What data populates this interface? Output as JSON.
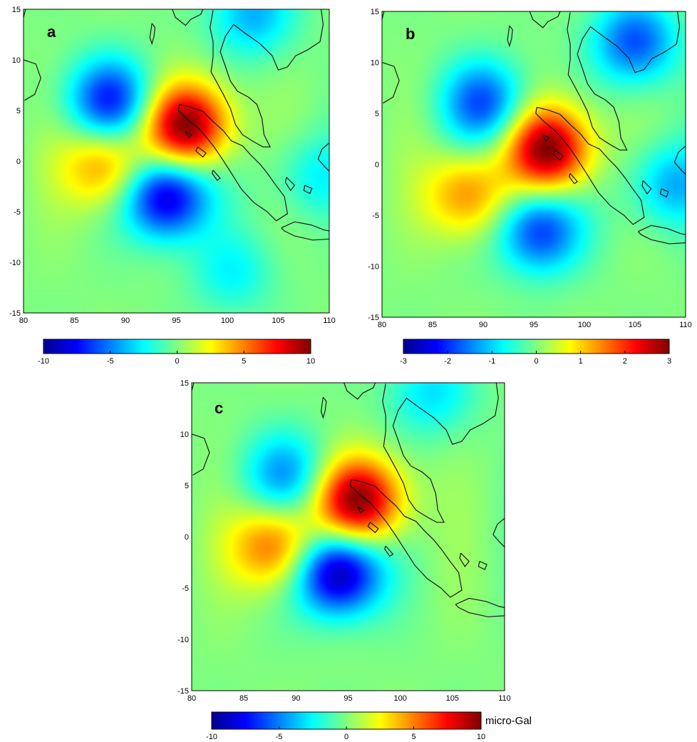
{
  "colormap": [
    "#00008f",
    "#0000ff",
    "#0080ff",
    "#00ffff",
    "#80ff80",
    "#ffff00",
    "#ff8000",
    "#ff0000",
    "#800000"
  ],
  "coastline_color": "#1a1a1a",
  "chart_data": [
    {
      "type": "heatmap",
      "panel_label": "a",
      "x_ticks": [
        80,
        85,
        90,
        95,
        100,
        105,
        110
      ],
      "y_ticks": [
        15,
        10,
        5,
        0,
        -5,
        -10,
        -15
      ],
      "xlim": [
        80,
        110
      ],
      "ylim": [
        -15,
        15
      ],
      "colorbar": {
        "min": -10,
        "max": 10,
        "ticks": [
          -10,
          -5,
          0,
          5,
          10
        ],
        "unit": ""
      },
      "anomalies": [
        {
          "lon": 96,
          "lat": 3.5,
          "value": 10
        },
        {
          "lon": 94,
          "lat": -3.5,
          "value": -9
        },
        {
          "lon": 88.5,
          "lat": 6,
          "value": -7
        },
        {
          "lon": 88,
          "lat": -0.5,
          "value": 5
        },
        {
          "lon": 102.5,
          "lat": 14.5,
          "value": -4
        },
        {
          "lon": 108.5,
          "lat": -1.5,
          "value": -2.5
        },
        {
          "lon": 100.5,
          "lat": -11,
          "value": -2.5
        }
      ]
    },
    {
      "type": "heatmap",
      "panel_label": "b",
      "x_ticks": [
        80,
        85,
        90,
        95,
        100,
        105,
        110
      ],
      "y_ticks": [
        15,
        10,
        5,
        0,
        -5,
        -10,
        -15
      ],
      "xlim": [
        80,
        110
      ],
      "ylim": [
        -15,
        15
      ],
      "colorbar": {
        "min": -3,
        "max": 3,
        "ticks": [
          -3,
          -2,
          -1,
          0,
          1,
          2,
          3
        ],
        "unit": ""
      },
      "anomalies": [
        {
          "lon": 96.5,
          "lat": 1.5,
          "value": 3
        },
        {
          "lon": 88.5,
          "lat": -3,
          "value": 1.5
        },
        {
          "lon": 95.5,
          "lat": -6.5,
          "value": -2
        },
        {
          "lon": 90,
          "lat": 6,
          "value": -1.8
        },
        {
          "lon": 105,
          "lat": 12,
          "value": -1.8
        },
        {
          "lon": 108.5,
          "lat": -2,
          "value": -1.2
        }
      ]
    },
    {
      "type": "heatmap",
      "panel_label": "c",
      "x_ticks": [
        80,
        85,
        90,
        95,
        100,
        105,
        110
      ],
      "y_ticks": [
        15,
        10,
        5,
        0,
        -5,
        -10,
        -15
      ],
      "xlim": [
        80,
        110
      ],
      "ylim": [
        -15,
        15
      ],
      "colorbar": {
        "min": -10,
        "max": 10,
        "ticks": [
          -10,
          -5,
          0,
          5,
          10
        ],
        "unit": "micro-Gal"
      },
      "anomalies": [
        {
          "lon": 96,
          "lat": 3.5,
          "value": 10
        },
        {
          "lon": 94,
          "lat": -3.5,
          "value": -10
        },
        {
          "lon": 88,
          "lat": -1,
          "value": 6
        },
        {
          "lon": 89,
          "lat": 6,
          "value": -4.5
        },
        {
          "lon": 103,
          "lat": 14,
          "value": -3
        }
      ]
    }
  ]
}
